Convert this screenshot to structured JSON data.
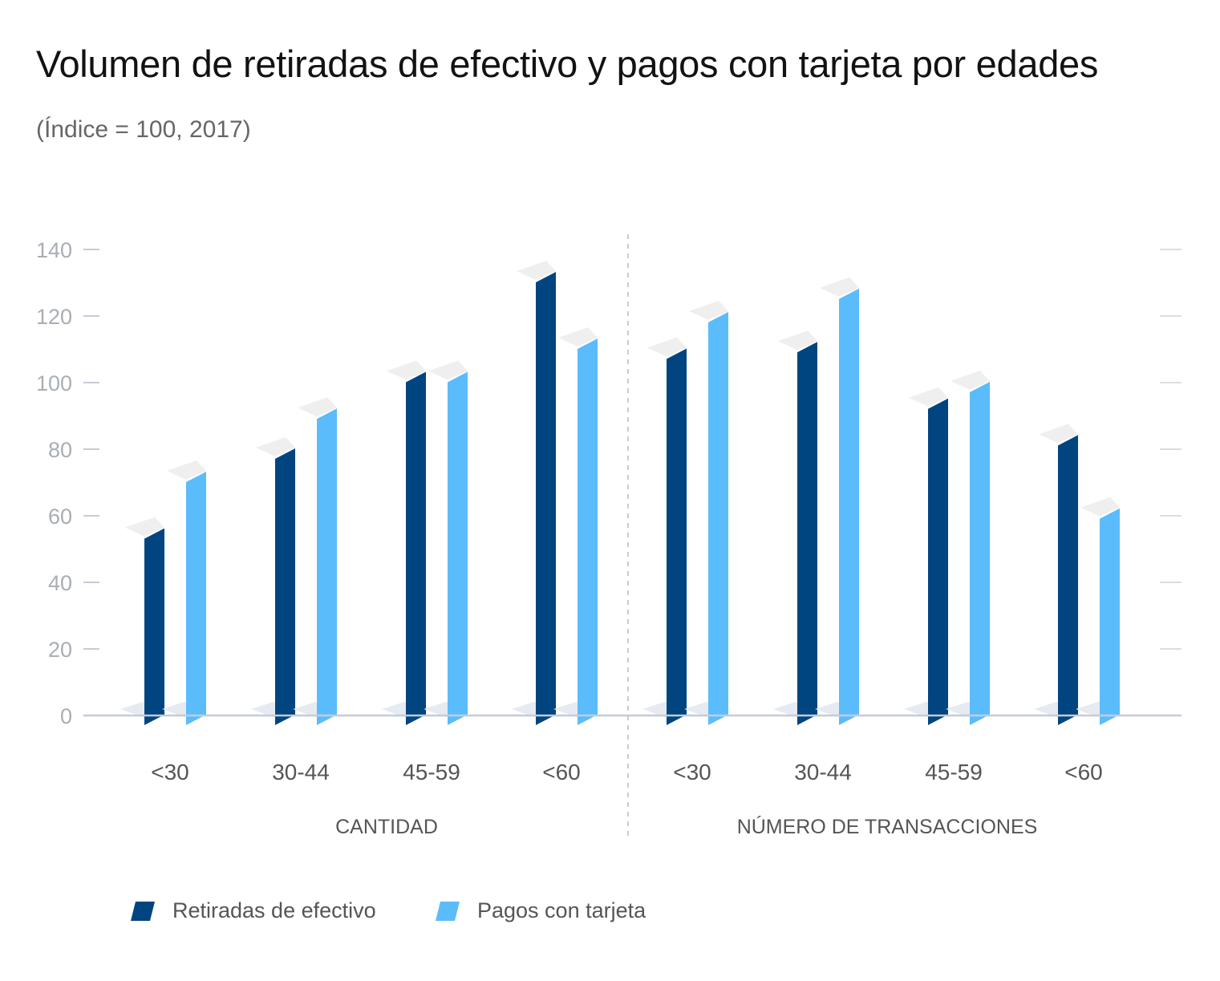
{
  "title": "Volumen de retiradas de efectivo y pagos con tarjeta por edades",
  "subtitle": "(Índice = 100, 2017)",
  "colors": {
    "cash": "#00457f",
    "card": "#5bbcfc",
    "cap": "#efefef",
    "axis": "#c5ccd6",
    "grid": "#dddddd",
    "tick_text": "#a8aeb5",
    "label_text": "#555555"
  },
  "chart_data": {
    "type": "bar",
    "title": "Volumen de retiradas de efectivo y pagos con tarjeta por edades",
    "subtitle": "(Índice = 100, 2017)",
    "ylim": [
      0,
      140
    ],
    "yticks": [
      0,
      20,
      40,
      60,
      80,
      100,
      120,
      140
    ],
    "groups": [
      {
        "label": "CANTIDAD",
        "categories": [
          "<30",
          "30-44",
          "45-59",
          "<60"
        ]
      },
      {
        "label": "NÚMERO DE TRANSACCIONES",
        "categories": [
          "<30",
          "30-44",
          "45-59",
          "<60"
        ]
      }
    ],
    "series": [
      {
        "name": "Retiradas de efectivo",
        "values": [
          56,
          80,
          103,
          133,
          110,
          112,
          95,
          84
        ]
      },
      {
        "name": "Pagos con tarjeta",
        "values": [
          73,
          92,
          103,
          113,
          121,
          128,
          100,
          62
        ]
      }
    ]
  },
  "legend": [
    {
      "label": "Retiradas de efectivo",
      "color": "#00457f"
    },
    {
      "label": "Pagos con tarjeta",
      "color": "#5bbcfc"
    }
  ]
}
